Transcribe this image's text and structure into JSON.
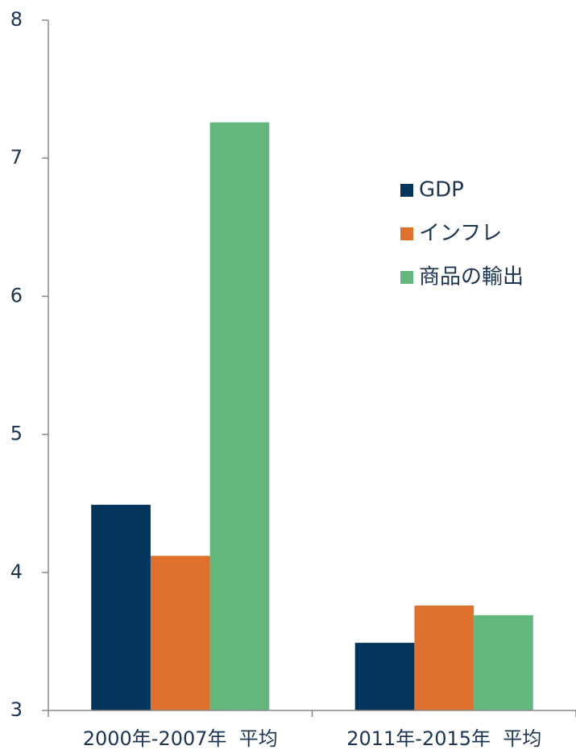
{
  "chart_data": {
    "type": "bar",
    "categories": [
      "2000年-2007年  平均",
      "2011年-2015年  平均"
    ],
    "series": [
      {
        "name": "GDP",
        "color": "#03345c",
        "values": [
          4.49,
          3.49
        ]
      },
      {
        "name": "インフレ",
        "color": "#e0702d",
        "values": [
          4.12,
          3.76
        ]
      },
      {
        "name": "商品の輸出",
        "color": "#63b67c",
        "values": [
          7.26,
          3.69
        ]
      }
    ],
    "ylim": [
      3,
      8
    ],
    "yticks": [
      3,
      4,
      5,
      6,
      7,
      8
    ],
    "grid": false,
    "legend": "right"
  }
}
